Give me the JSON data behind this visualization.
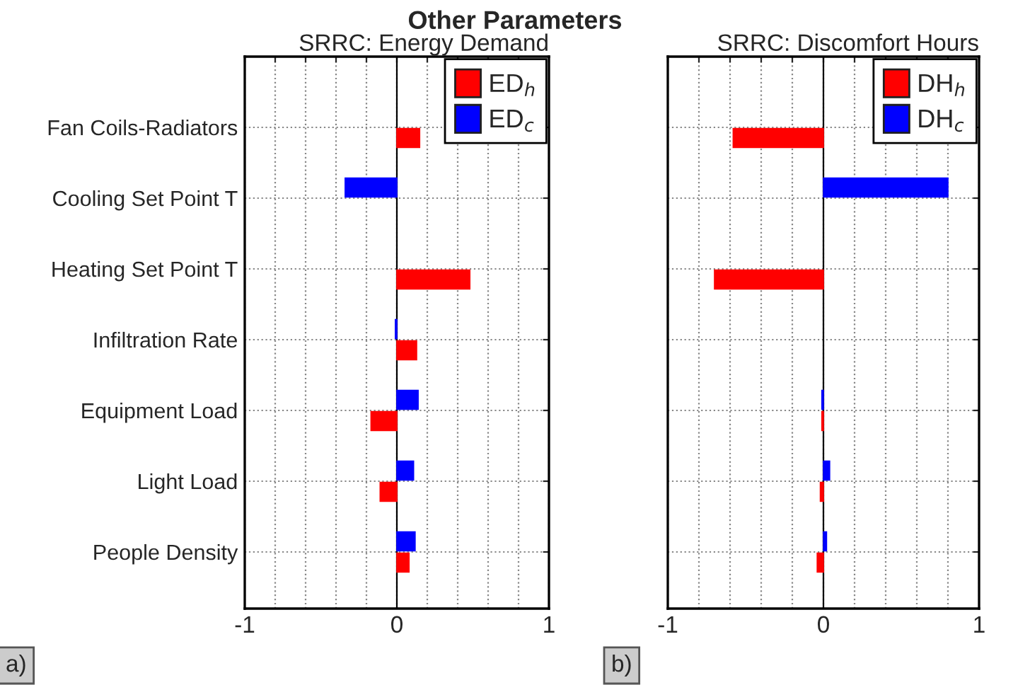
{
  "chart_data": [
    {
      "type": "bar",
      "orientation": "horizontal",
      "title": "Other Parameters",
      "subtitle": "SRRC: Energy Demand",
      "categories": [
        "Fan Coils-Radiators",
        "Cooling Set Point T",
        "Heating Set Point T",
        "Infiltration Rate",
        "Equipment Load",
        "Light Load",
        "People Density"
      ],
      "series": [
        {
          "name": "ED$_{c}$",
          "color": "#0000ff",
          "values": [
            null,
            -0.34,
            null,
            -0.01,
            0.14,
            0.11,
            0.12
          ]
        },
        {
          "name": "ED$_{h}$",
          "color": "#ff0000",
          "values": [
            0.15,
            null,
            0.48,
            0.13,
            -0.17,
            -0.11,
            0.08
          ]
        }
      ],
      "xlim": [
        -1,
        1
      ],
      "xticks": [
        -1,
        {
          "value": -0.8,
          "label": null
        },
        {
          "value": -0.6,
          "label": null
        },
        {
          "value": -0.4,
          "label": null
        },
        {
          "value": -0.2,
          "label": null
        },
        0,
        {
          "value": 0.2,
          "label": null
        },
        {
          "value": 0.4,
          "label": null
        },
        {
          "value": 0.6,
          "label": null
        },
        {
          "value": 0.8,
          "label": null
        },
        1
      ],
      "grid": true,
      "legend": "top right",
      "annotations": [
        "a)"
      ]
    },
    {
      "type": "bar",
      "orientation": "horizontal",
      "subtitle": "SRRC: Discomfort Hours",
      "categories": [
        null,
        null,
        null,
        null,
        null,
        null,
        null
      ],
      "series": [
        {
          "name": "DH$_{c}$",
          "color": "#0000ff",
          "values": [
            null,
            0.8,
            null,
            null,
            -0.01,
            0.04,
            0.02
          ]
        },
        {
          "name": "DH$_{h}$",
          "color": "#ff0000",
          "values": [
            -0.58,
            null,
            -0.7,
            null,
            -0.01,
            -0.02,
            -0.04
          ]
        }
      ],
      "xlim": [
        -1,
        1
      ],
      "xticks": [
        -1,
        {
          "value": -0.8,
          "label": null
        },
        {
          "value": -0.6,
          "label": null
        },
        {
          "value": -0.4,
          "label": null
        },
        {
          "value": -0.2,
          "label": null
        },
        0,
        {
          "value": 0.2,
          "label": null
        },
        {
          "value": 0.4,
          "label": null
        },
        {
          "value": 0.6,
          "label": null
        },
        {
          "value": 0.8,
          "label": null
        },
        1
      ],
      "grid": true,
      "legend": "top right",
      "tick_labels": "x",
      "annotations": [
        "b)"
      ]
    }
  ]
}
